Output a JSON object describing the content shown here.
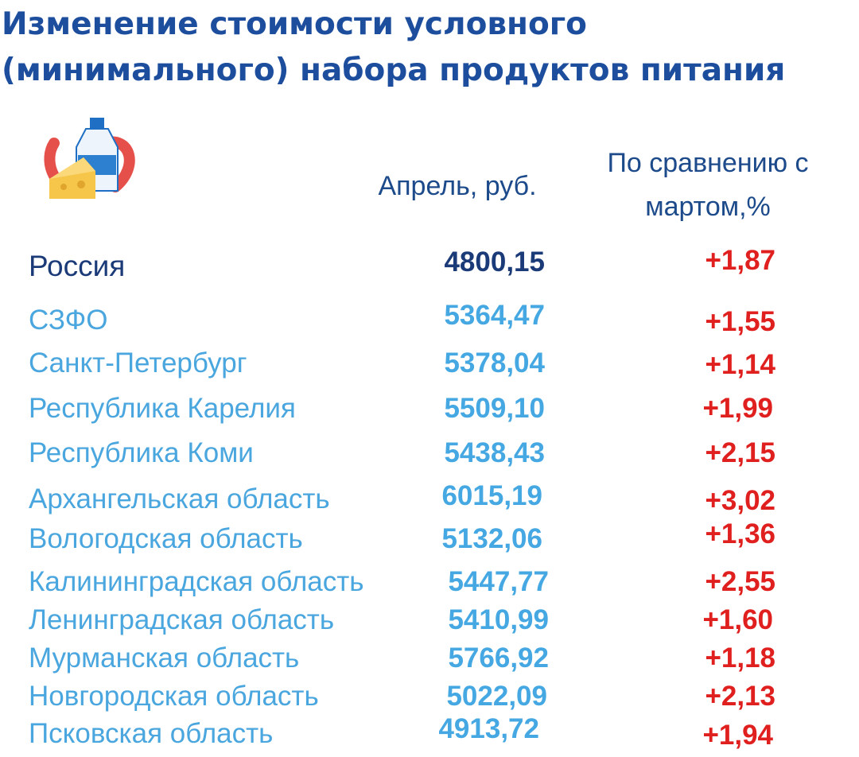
{
  "header": {
    "title_lines": [
      "Изменение стоимости условного",
      "(минимального) набора продуктов питания"
    ]
  },
  "table": {
    "columns": [
      [
        "Апрель, руб."
      ],
      [
        "По сравнению с",
        "мартом,%"
      ]
    ],
    "rows": [
      [
        "Россия",
        "4800,15",
        "+1,87"
      ],
      [
        "СЗФО",
        "5364,47",
        "+1,55"
      ],
      [
        "Санкт-Петербург",
        "5378,04",
        "+1,14"
      ],
      [
        "Республика Карелия",
        "5509,10",
        "+1,99"
      ],
      [
        "Республика Коми",
        "5438,43",
        "+2,15"
      ],
      [
        "Архангельская область",
        "6015,19",
        "+3,02"
      ],
      [
        "Вологодская область",
        "5132,06",
        "+1,36"
      ],
      [
        "Калининградская область",
        "5447,77",
        "+2,55"
      ],
      [
        "Ленинградская область",
        "5410,99",
        "+1,60"
      ],
      [
        "Мурманская область",
        "5766,92",
        "+1,18"
      ],
      [
        "Новгородская область",
        "5022,09",
        "+2,13"
      ],
      [
        "Псковская область",
        "4913,72",
        "+1,94"
      ]
    ]
  }
}
